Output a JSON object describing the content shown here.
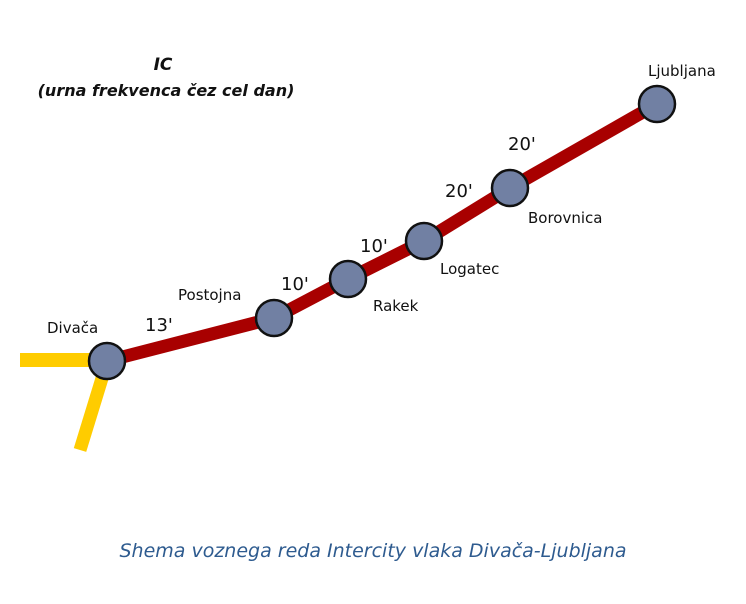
{
  "title": "IC",
  "subtitle": "(urna frekvenca čez cel dan)",
  "stations": [
    "Divača",
    "Postojna",
    "Rakek",
    "Logatec",
    "Borovnica",
    "Ljubljana"
  ],
  "travel_times": [
    "13'",
    "10'",
    "10'",
    "20'",
    "20'"
  ],
  "caption": "Shema voznega reda Intercity vlaka Divača-Ljubljana",
  "colors": {
    "line": "#a80000",
    "branch": "#ffcc00",
    "station": "#7180a3",
    "caption": "#2e5b8f"
  }
}
